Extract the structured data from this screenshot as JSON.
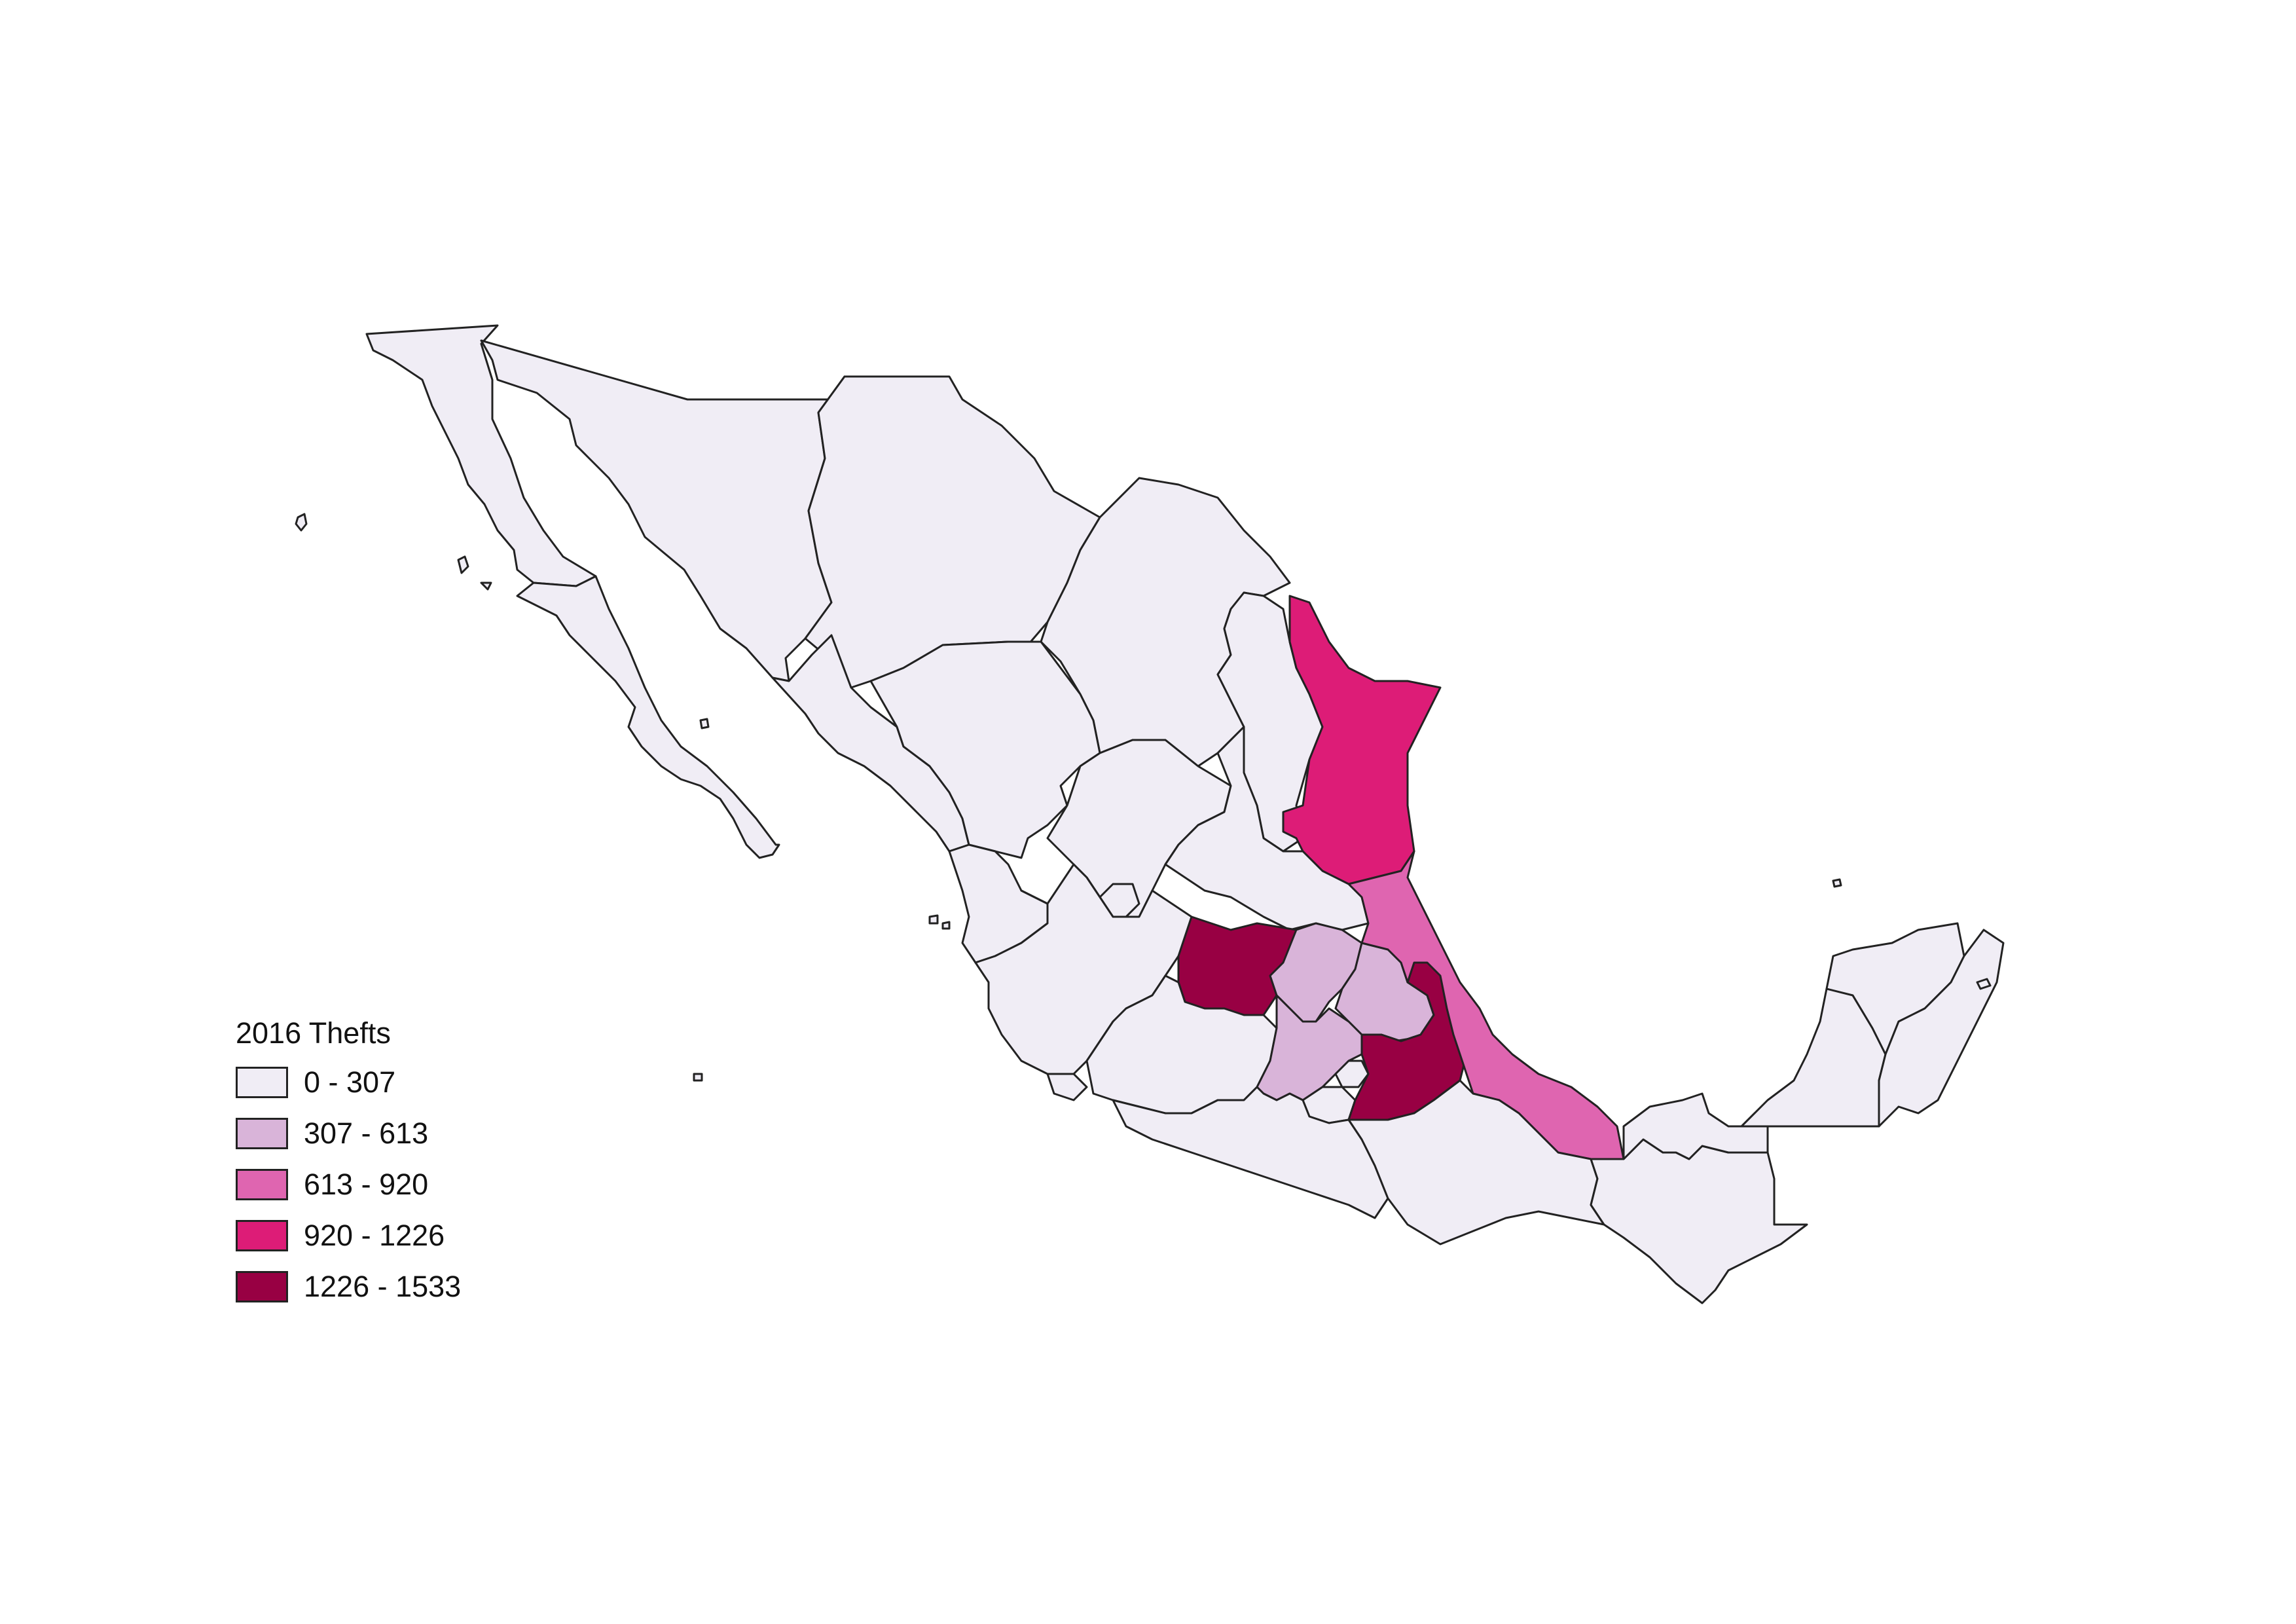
{
  "legend": {
    "title": "2016 Thefts",
    "classes": [
      {
        "label": "0 - 307",
        "color": "#f0edf5"
      },
      {
        "label": "307 - 613",
        "color": "#d9b4d9"
      },
      {
        "label": "613 - 920",
        "color": "#df65b0"
      },
      {
        "label": "920 - 1226",
        "color": "#dd1c77"
      },
      {
        "label": "1226 - 1533",
        "color": "#980043"
      }
    ]
  },
  "regions": [
    {
      "name": "Baja California",
      "class": 0
    },
    {
      "name": "Baja California Sur",
      "class": 0
    },
    {
      "name": "Sonora",
      "class": 0
    },
    {
      "name": "Chihuahua",
      "class": 0
    },
    {
      "name": "Coahuila",
      "class": 0
    },
    {
      "name": "Nuevo León",
      "class": 0
    },
    {
      "name": "Tamaulipas",
      "class": 3
    },
    {
      "name": "Sinaloa",
      "class": 0
    },
    {
      "name": "Durango",
      "class": 0
    },
    {
      "name": "Zacatecas",
      "class": 0
    },
    {
      "name": "San Luis Potosí",
      "class": 0
    },
    {
      "name": "Nayarit",
      "class": 0
    },
    {
      "name": "Aguascalientes",
      "class": 0
    },
    {
      "name": "Jalisco",
      "class": 0
    },
    {
      "name": "Guanajuato",
      "class": 4
    },
    {
      "name": "Querétaro",
      "class": 1
    },
    {
      "name": "Hidalgo",
      "class": 1
    },
    {
      "name": "Colima",
      "class": 0
    },
    {
      "name": "Michoacán",
      "class": 0
    },
    {
      "name": "Estado de México",
      "class": 1
    },
    {
      "name": "Ciudad de México",
      "class": 0
    },
    {
      "name": "Morelos",
      "class": 0
    },
    {
      "name": "Tlaxcala",
      "class": 0
    },
    {
      "name": "Puebla",
      "class": 4
    },
    {
      "name": "Veracruz",
      "class": 2
    },
    {
      "name": "Guerrero",
      "class": 0
    },
    {
      "name": "Oaxaca",
      "class": 0
    },
    {
      "name": "Chiapas",
      "class": 0
    },
    {
      "name": "Tabasco",
      "class": 0
    },
    {
      "name": "Campeche",
      "class": 0
    },
    {
      "name": "Yucatán",
      "class": 0
    },
    {
      "name": "Quintana Roo",
      "class": 0
    }
  ]
}
